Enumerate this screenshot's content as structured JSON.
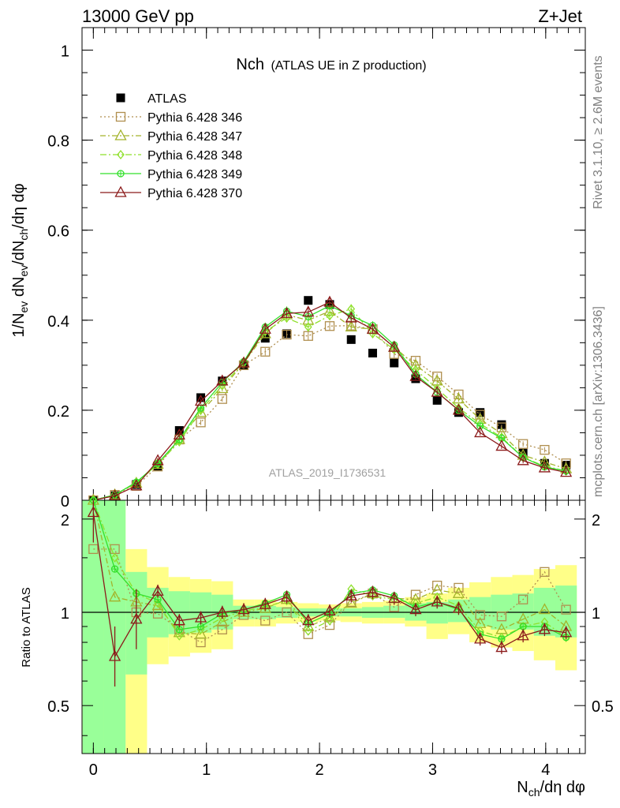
{
  "header": {
    "left": "13000 GeV pp",
    "right": "Z+Jet"
  },
  "side_labels": {
    "rivet": "Rivet 3.1.10, ≥ 2.6M events",
    "mcplots": "mcplots.cern.ch [arXiv:1306.3436]"
  },
  "main_title": {
    "prefix": "Nch",
    "suffix": "(ATLAS UE in Z production)"
  },
  "watermark": "ATLAS_2019_I1736531",
  "colors": {
    "ATLAS": "#000000",
    "p346": "#b08f4f",
    "p347": "#a3b32b",
    "p348": "#8fe02b",
    "p349": "#33e02b",
    "p370": "#8b1a1a",
    "band_yellow": "#ffff88",
    "band_green": "#99ff99"
  },
  "chart_data": [
    {
      "type": "scatter",
      "panel": "main",
      "title": "Nch (ATLAS UE in Z production)",
      "ylabel": "1/Nev dNev/dNch/dη dφ",
      "xlabel": "Nch/dη dφ",
      "xlim": [
        -0.1,
        4.35
      ],
      "ylim": [
        0,
        1.05
      ],
      "x_ticks": [
        "0",
        "1",
        "2",
        "3",
        "4"
      ],
      "y_ticks": [
        "0",
        "0.2",
        "0.4",
        "0.6",
        "0.8",
        "1"
      ],
      "legend_position": "top-left",
      "x": [
        0.0,
        0.19,
        0.38,
        0.57,
        0.76,
        0.95,
        1.14,
        1.33,
        1.52,
        1.71,
        1.9,
        2.09,
        2.28,
        2.47,
        2.66,
        2.85,
        3.04,
        3.23,
        3.42,
        3.61,
        3.8,
        3.99,
        4.18
      ],
      "series": [
        {
          "name": "ATLAS",
          "key": "ATLAS",
          "style": "data",
          "values": [
            0.0,
            0.01,
            0.035,
            0.075,
            0.155,
            0.228,
            0.265,
            0.3,
            0.36,
            0.37,
            0.444,
            0.435,
            0.357,
            0.327,
            0.305,
            0.27,
            0.222,
            0.195,
            0.195,
            0.168,
            0.105,
            0.082,
            0.078
          ]
        },
        {
          "name": "Pythia 6.428 346",
          "key": "p346",
          "style": "square",
          "dash": "2,3",
          "values": [
            0.0,
            0.012,
            0.032,
            0.075,
            0.135,
            0.173,
            0.225,
            0.3,
            0.33,
            0.368,
            0.365,
            0.387,
            0.388,
            0.38,
            0.325,
            0.31,
            0.275,
            0.235,
            0.19,
            0.162,
            0.125,
            0.112,
            0.082
          ]
        },
        {
          "name": "Pythia 6.428 347",
          "key": "p347",
          "style": "triangle",
          "dash": "7,3,2,3",
          "values": [
            0.0,
            0.012,
            0.038,
            0.08,
            0.135,
            0.195,
            0.248,
            0.305,
            0.37,
            0.412,
            0.4,
            0.42,
            0.385,
            0.38,
            0.34,
            0.3,
            0.265,
            0.225,
            0.18,
            0.148,
            0.1,
            0.085,
            0.07
          ]
        },
        {
          "name": "Pythia 6.428 348",
          "key": "p348",
          "style": "diamond",
          "dash": "8,3,2,3",
          "values": [
            0.0,
            0.012,
            0.04,
            0.08,
            0.13,
            0.2,
            0.255,
            0.305,
            0.375,
            0.405,
            0.385,
            0.41,
            0.425,
            0.37,
            0.335,
            0.29,
            0.248,
            0.205,
            0.17,
            0.14,
            0.095,
            0.076,
            0.065
          ]
        },
        {
          "name": "Pythia 6.428 349",
          "key": "p349",
          "style": "circle",
          "dash": "",
          "values": [
            0.0,
            0.012,
            0.04,
            0.082,
            0.135,
            0.205,
            0.262,
            0.308,
            0.385,
            0.42,
            0.408,
            0.432,
            0.41,
            0.388,
            0.345,
            0.28,
            0.24,
            0.2,
            0.165,
            0.138,
            0.095,
            0.074,
            0.065
          ]
        },
        {
          "name": "Pythia 6.428 370",
          "key": "p370",
          "style": "triangle",
          "dash": "",
          "values": [
            0.0,
            0.01,
            0.032,
            0.088,
            0.145,
            0.22,
            0.265,
            0.305,
            0.38,
            0.415,
            0.418,
            0.44,
            0.405,
            0.38,
            0.34,
            0.275,
            0.24,
            0.2,
            0.15,
            0.12,
            0.088,
            0.072,
            0.062
          ]
        }
      ]
    },
    {
      "type": "scatter",
      "panel": "ratio",
      "ylabel": "Ratio to ATLAS",
      "xlabel": "Nch/dη dφ",
      "xlim": [
        -0.1,
        4.35
      ],
      "ylim": [
        0.35,
        2.3
      ],
      "y_scale": "log",
      "x_ticks": [
        "0",
        "1",
        "2",
        "3",
        "4"
      ],
      "y_ticks": [
        "0.5",
        "1",
        "2"
      ],
      "x": [
        0.0,
        0.19,
        0.38,
        0.57,
        0.76,
        0.95,
        1.14,
        1.33,
        1.52,
        1.71,
        1.9,
        2.09,
        2.28,
        2.47,
        2.66,
        2.85,
        3.04,
        3.23,
        3.42,
        3.61,
        3.8,
        3.99,
        4.18
      ],
      "bands": {
        "yellow_low": [
          0.3,
          0.3,
          0.3,
          0.68,
          0.72,
          0.74,
          0.76,
          0.9,
          0.9,
          0.92,
          0.93,
          0.94,
          0.93,
          0.92,
          0.92,
          0.9,
          0.82,
          0.85,
          0.8,
          0.77,
          0.75,
          0.7,
          0.65
        ],
        "yellow_high": [
          2.3,
          2.3,
          1.6,
          1.4,
          1.3,
          1.28,
          1.26,
          1.1,
          1.1,
          1.08,
          1.07,
          1.06,
          1.07,
          1.08,
          1.09,
          1.12,
          1.15,
          1.2,
          1.25,
          1.3,
          1.32,
          1.38,
          1.42
        ],
        "green_low": [
          0.3,
          0.35,
          0.63,
          0.83,
          0.85,
          0.86,
          0.88,
          0.95,
          0.95,
          0.96,
          0.97,
          0.97,
          0.97,
          0.96,
          0.96,
          0.94,
          0.92,
          0.93,
          0.9,
          0.88,
          0.88,
          0.84,
          0.83
        ],
        "green_high": [
          2.3,
          2.3,
          1.35,
          1.2,
          1.17,
          1.16,
          1.14,
          1.05,
          1.05,
          1.04,
          1.03,
          1.03,
          1.03,
          1.04,
          1.05,
          1.07,
          1.08,
          1.1,
          1.12,
          1.14,
          1.15,
          1.2,
          1.22
        ]
      },
      "series": [
        {
          "key": "p346",
          "style": "square",
          "dash": "2,3",
          "values": [
            1.6,
            1.6,
            1.0,
            0.99,
            0.88,
            0.8,
            0.88,
            0.98,
            0.94,
            1.0,
            0.85,
            0.91,
            1.08,
            1.15,
            1.04,
            1.14,
            1.22,
            1.2,
            0.98,
            0.97,
            1.1,
            1.35,
            1.02
          ]
        },
        {
          "key": "p347",
          "style": "triangle",
          "dash": "7,3,2,3",
          "values": [
            2.3,
            1.12,
            1.08,
            1.05,
            0.86,
            0.85,
            0.93,
            1.0,
            1.03,
            1.1,
            0.9,
            0.96,
            1.07,
            1.15,
            1.11,
            1.1,
            1.18,
            1.15,
            0.92,
            0.88,
            0.95,
            1.02,
            0.9
          ]
        },
        {
          "key": "p348",
          "style": "diamond",
          "dash": "8,3,2,3",
          "values": [
            2.3,
            1.5,
            1.15,
            1.07,
            0.84,
            0.88,
            0.96,
            1.01,
            1.04,
            1.09,
            0.87,
            0.94,
            1.19,
            1.13,
            1.1,
            1.07,
            1.12,
            1.05,
            0.87,
            0.83,
            0.9,
            0.93,
            0.83
          ]
        },
        {
          "key": "p349",
          "style": "circle",
          "dash": "",
          "values": [
            2.3,
            1.38,
            1.15,
            1.1,
            0.88,
            0.9,
            0.99,
            1.02,
            1.07,
            1.14,
            0.92,
            0.99,
            1.15,
            1.18,
            1.13,
            1.04,
            1.08,
            1.02,
            0.85,
            0.82,
            0.9,
            0.9,
            0.83
          ]
        },
        {
          "key": "p370",
          "style": "triangle",
          "dash": "",
          "values": [
            2.1,
            0.72,
            0.95,
            1.17,
            0.94,
            0.96,
            1.0,
            1.02,
            1.06,
            1.12,
            0.94,
            1.01,
            1.13,
            1.16,
            1.11,
            1.02,
            1.08,
            1.03,
            0.82,
            0.77,
            0.84,
            0.88,
            0.86
          ]
        }
      ]
    }
  ]
}
